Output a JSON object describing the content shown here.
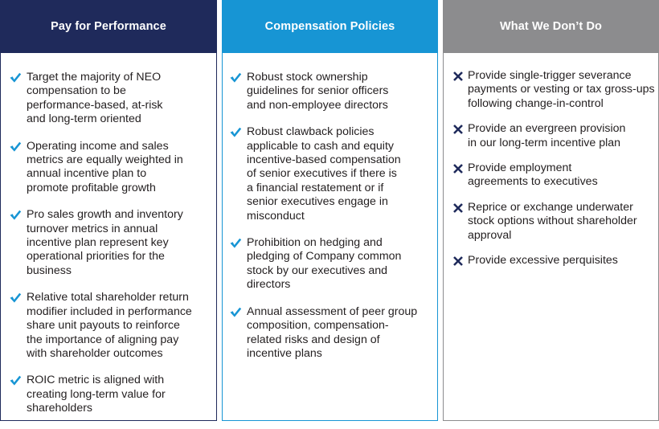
{
  "columns": [
    {
      "title": "Pay for Performance",
      "icon": "checkmark-icon",
      "color": "#1f2a5b",
      "items": [
        [
          "Target the majority of NEO",
          "compensation to be",
          "performance-based, at-risk",
          "and long-term oriented"
        ],
        [
          "Operating income and sales",
          "metrics are equally weighted in",
          "annual incentive plan to",
          "promote profitable growth"
        ],
        [
          "Pro sales growth and inventory",
          "turnover metrics in annual",
          "incentive plan represent key",
          "operational priorities for the",
          "business"
        ],
        [
          "Relative total shareholder return",
          "modifier included in performance",
          "share unit payouts to reinforce",
          "the importance of aligning pay",
          "with shareholder outcomes"
        ],
        [
          "ROIC metric is aligned with",
          "creating long-term value for",
          "shareholders"
        ]
      ]
    },
    {
      "title": "Compensation Policies",
      "icon": "checkmark-icon",
      "color": "#1795d4",
      "items": [
        [
          "Robust stock ownership",
          "guidelines for senior officers",
          "and non-employee directors"
        ],
        [
          "Robust clawback policies",
          "applicable to cash and equity",
          "incentive-based compensation",
          "of senior executives if there is",
          "a financial restatement or if",
          "senior executives engage in",
          "misconduct"
        ],
        [
          "Prohibition on hedging and",
          "pledging of Company common",
          "stock by our executives and",
          "directors"
        ],
        [
          "Annual assessment of peer group",
          "composition, compensation-",
          "related risks and design of",
          "incentive plans"
        ]
      ]
    },
    {
      "title": "What We Don’t Do",
      "icon": "x-mark-icon",
      "color": "#8c8c8e",
      "items": [
        [
          "Provide single-trigger severance",
          "payments or vesting or tax gross-ups",
          "following change-in-control"
        ],
        [
          "Provide an evergreen provision",
          "in our long-term incentive plan"
        ],
        [
          "Provide employment",
          "agreements to executives"
        ],
        [
          "Reprice or exchange underwater",
          "stock options without shareholder",
          "approval"
        ],
        [
          "Provide excessive perquisites"
        ]
      ]
    }
  ],
  "colors": {
    "check": "#1795d4",
    "cross": "#1f2a5b"
  }
}
